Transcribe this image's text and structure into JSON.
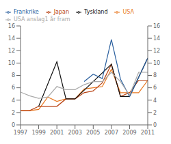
{
  "chart_data": {
    "type": "line",
    "series": [
      {
        "name": "USA",
        "color": "#e87820",
        "x": [
          1997,
          1998,
          1999,
          2000,
          2001,
          2002,
          2003,
          2004,
          2005,
          2006,
          2007,
          2008,
          2009,
          2010,
          2011
        ],
        "values": [
          2.3,
          2.3,
          2.5,
          4.5,
          3.8,
          4.2,
          4.2,
          5.8,
          6.0,
          6.2,
          9.0,
          5.2,
          5.2,
          5.2,
          7.2
        ]
      },
      {
        "name": "Japan",
        "color": "#b84010",
        "x": [
          1997,
          1998,
          1999,
          2000,
          2001,
          2002,
          2003,
          2004,
          2005,
          2006,
          2007,
          2008,
          2009,
          2010,
          2011
        ],
        "values": [
          2.3,
          2.3,
          3.0,
          3.0,
          3.0,
          4.2,
          4.2,
          5.2,
          5.5,
          6.8,
          9.8,
          4.6,
          5.2,
          7.2,
          7.2
        ]
      },
      {
        "name": "Tyskland",
        "color": "#111111",
        "x": [
          1999,
          2001,
          2002,
          2003,
          2007,
          2008,
          2009,
          2011
        ],
        "values": [
          3.0,
          10.2,
          4.2,
          4.2,
          9.8,
          4.6,
          4.6,
          10.8
        ]
      },
      {
        "name": "Frankrike",
        "color": "#2a5f9e",
        "x": [
          2004,
          2005,
          2006,
          2007,
          2008,
          2009,
          2011
        ],
        "values": [
          7.0,
          8.2,
          7.5,
          13.8,
          7.4,
          4.6,
          10.8
        ]
      },
      {
        "name": "USA anslag1 år fram",
        "color": "#aaaaaa",
        "x": [
          1997,
          1998,
          1999,
          2000,
          2001,
          2002,
          2003,
          2004,
          2005,
          2006,
          2007,
          2008,
          2009,
          2010,
          2011
        ],
        "values": [
          5.3,
          4.7,
          4.3,
          4.5,
          6.2,
          5.7,
          5.7,
          6.5,
          7.0,
          7.0,
          8.5,
          7.0,
          4.8,
          8.5,
          8.5
        ]
      }
    ],
    "xlim": [
      1997,
      2011
    ],
    "xticks": [
      1997,
      1999,
      2001,
      2003,
      2005,
      2007,
      2009,
      2011
    ],
    "ylim": [
      0,
      16
    ],
    "yticks": [
      0,
      2,
      4,
      6,
      8,
      10,
      12,
      14,
      16
    ],
    "y2lim": [
      0,
      16
    ],
    "y2ticks": [
      0,
      2,
      4,
      6,
      8,
      10,
      12,
      14,
      16
    ],
    "legend": "upper left"
  }
}
